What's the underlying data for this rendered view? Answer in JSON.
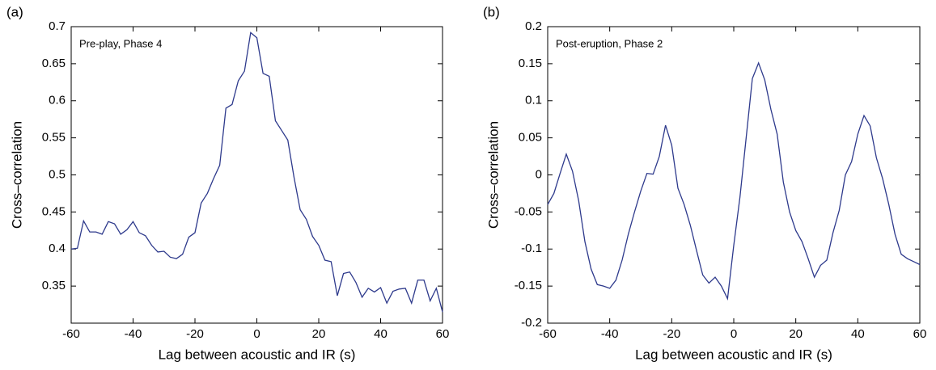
{
  "chart_data": [
    {
      "type": "line",
      "panel_label": "(a)",
      "annotation": "Pre-play, Phase 4",
      "x_label": "Lag between acoustic and IR  (s)",
      "y_label": "Cross–correlation",
      "xlim": [
        -60,
        60
      ],
      "xticks": [
        -60,
        -40,
        -20,
        0,
        20,
        40,
        60
      ],
      "ylim": [
        0.3,
        0.7
      ],
      "yticks": [
        0.35,
        0.4,
        0.45,
        0.5,
        0.55,
        0.6,
        0.65,
        0.7
      ],
      "x": [
        -60,
        -58,
        -56,
        -54,
        -52,
        -50,
        -48,
        -46,
        -44,
        -42,
        -40,
        -38,
        -36,
        -34,
        -32,
        -30,
        -28,
        -26,
        -24,
        -22,
        -20,
        -18,
        -16,
        -14,
        -12,
        -10,
        -8,
        -6,
        -4,
        -2,
        0,
        2,
        4,
        6,
        8,
        10,
        12,
        14,
        16,
        18,
        20,
        22,
        24,
        26,
        28,
        30,
        32,
        34,
        36,
        38,
        40,
        42,
        44,
        46,
        48,
        50,
        52,
        54,
        56,
        58,
        60
      ],
      "series": [
        {
          "color": "#2e3a8c",
          "values": [
            0.4,
            0.401,
            0.438,
            0.423,
            0.423,
            0.42,
            0.437,
            0.434,
            0.42,
            0.426,
            0.437,
            0.422,
            0.418,
            0.405,
            0.396,
            0.397,
            0.389,
            0.387,
            0.393,
            0.416,
            0.422,
            0.462,
            0.475,
            0.495,
            0.513,
            0.59,
            0.595,
            0.627,
            0.64,
            0.692,
            0.685,
            0.637,
            0.633,
            0.573,
            0.56,
            0.547,
            0.497,
            0.453,
            0.44,
            0.417,
            0.405,
            0.385,
            0.383,
            0.337,
            0.367,
            0.369,
            0.355,
            0.335,
            0.347,
            0.342,
            0.348,
            0.327,
            0.343,
            0.346,
            0.347,
            0.327,
            0.358,
            0.358,
            0.33,
            0.347,
            0.315
          ]
        }
      ]
    },
    {
      "type": "line",
      "panel_label": "(b)",
      "annotation": "Post-eruption, Phase 2",
      "x_label": "Lag between acoustic and IR  (s)",
      "y_label": "Cross–correlation",
      "xlim": [
        -60,
        60
      ],
      "xticks": [
        -60,
        -40,
        -20,
        0,
        20,
        40,
        60
      ],
      "ylim": [
        -0.2,
        0.2
      ],
      "yticks": [
        -0.2,
        -0.15,
        -0.1,
        -0.05,
        0,
        0.05,
        0.1,
        0.15,
        0.2
      ],
      "x": [
        -60,
        -58,
        -56,
        -54,
        -52,
        -50,
        -48,
        -46,
        -44,
        -42,
        -40,
        -38,
        -36,
        -34,
        -32,
        -30,
        -28,
        -26,
        -24,
        -22,
        -20,
        -18,
        -16,
        -14,
        -12,
        -10,
        -8,
        -6,
        -4,
        -2,
        0,
        2,
        4,
        6,
        8,
        10,
        12,
        14,
        16,
        18,
        20,
        22,
        24,
        26,
        28,
        30,
        32,
        34,
        36,
        38,
        40,
        42,
        44,
        46,
        48,
        50,
        52,
        54,
        56,
        58,
        60
      ],
      "series": [
        {
          "color": "#2e3a8c",
          "values": [
            -0.04,
            -0.025,
            0.002,
            0.028,
            0.005,
            -0.035,
            -0.09,
            -0.127,
            -0.148,
            -0.15,
            -0.153,
            -0.142,
            -0.115,
            -0.08,
            -0.05,
            -0.022,
            0.002,
            0.001,
            0.025,
            0.067,
            0.04,
            -0.018,
            -0.04,
            -0.068,
            -0.102,
            -0.135,
            -0.146,
            -0.138,
            -0.15,
            -0.167,
            -0.095,
            -0.03,
            0.05,
            0.13,
            0.151,
            0.128,
            0.088,
            0.055,
            -0.01,
            -0.05,
            -0.075,
            -0.09,
            -0.113,
            -0.138,
            -0.122,
            -0.115,
            -0.078,
            -0.048,
            0,
            0.018,
            0.055,
            0.08,
            0.066,
            0.023,
            -0.005,
            -0.04,
            -0.08,
            -0.107,
            -0.113,
            -0.117,
            -0.121
          ]
        }
      ]
    }
  ]
}
